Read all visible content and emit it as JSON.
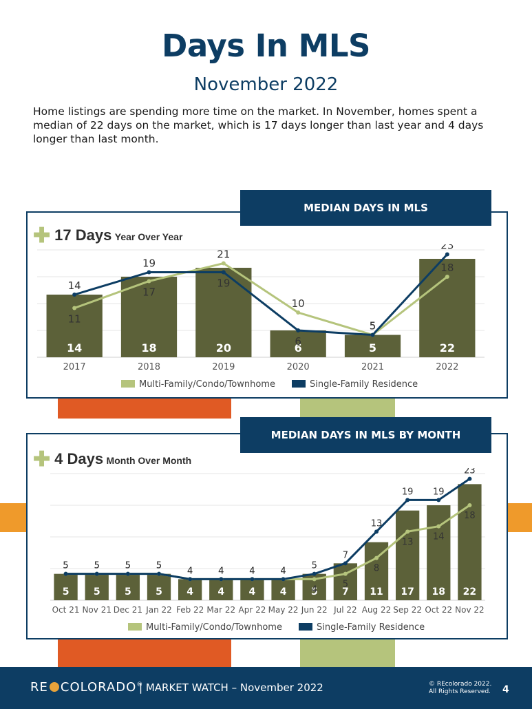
{
  "title": "Days In MLS",
  "subtitle": "November 2022",
  "intro": "Home listings are spending more time on the market. In November, homes spent a median of 22 days on the market, which is 17 days longer than last year and 4 days longer than last month.",
  "colors": {
    "navy": "#0d3d63",
    "olive_bar": "#5c6139",
    "light_green": "#b5c47c",
    "orange_red": "#e05a24",
    "orange": "#ef9a2b"
  },
  "yearly": {
    "banner": "MEDIAN DAYS IN MLS",
    "stat_big": "17 Days",
    "stat_small": "Year Over Year",
    "legend": [
      "Multi-Family/Condo/Townhome",
      "Single-Family Residence"
    ]
  },
  "monthly": {
    "banner": "MEDIAN DAYS IN MLS BY MONTH",
    "stat_big": "4 Days",
    "stat_small": "Month Over Month",
    "legend": [
      "Multi-Family/Condo/Townhome",
      "Single-Family Residence"
    ]
  },
  "footer": {
    "logo_left": "RE",
    "logo_right": "COLORADO",
    "logo_reg": "®",
    "market_watch": "| MARKET WATCH – November 2022",
    "copyright_1": "© REcolorado 2022.",
    "copyright_2": "All Rights Reserved.",
    "page": "4"
  },
  "chart_data": [
    {
      "type": "bar",
      "categories": [
        "2017",
        "2018",
        "2019",
        "2020",
        "2021",
        "2022"
      ],
      "series": [
        {
          "name": "",
          "kind": "bar",
          "values": [
            14,
            18,
            20,
            6,
            5,
            22
          ]
        },
        {
          "name": "Multi-Family/Condo/Townhome",
          "kind": "line",
          "values": [
            11,
            17,
            21,
            10,
            5,
            18
          ]
        },
        {
          "name": "Single-Family Residence",
          "kind": "line",
          "values": [
            14,
            19,
            19,
            6,
            5,
            23
          ]
        }
      ],
      "ylim": [
        0,
        24
      ],
      "legend": "bottom"
    },
    {
      "type": "bar",
      "categories": [
        "Oct 21",
        "Nov 21",
        "Dec 21",
        "Jan 22",
        "Feb 22",
        "Mar 22",
        "Apr 22",
        "May 22",
        "Jun 22",
        "Jul 22",
        "Aug 22",
        "Sep 22",
        "Oct 22",
        "Nov 22"
      ],
      "series": [
        {
          "name": "",
          "kind": "bar",
          "values": [
            5,
            5,
            5,
            5,
            4,
            4,
            4,
            4,
            5,
            7,
            11,
            17,
            18,
            22
          ]
        },
        {
          "name": "Multi-Family/Condo/Townhome",
          "kind": "line",
          "values": [
            5,
            5,
            5,
            5,
            4,
            4,
            4,
            4,
            4,
            5,
            8,
            13,
            14,
            18
          ]
        },
        {
          "name": "Single-Family Residence",
          "kind": "line",
          "values": [
            5,
            5,
            5,
            5,
            4,
            4,
            4,
            4,
            5,
            7,
            13,
            19,
            19,
            23
          ]
        }
      ],
      "ylim": [
        0,
        24
      ],
      "legend": "bottom"
    }
  ]
}
